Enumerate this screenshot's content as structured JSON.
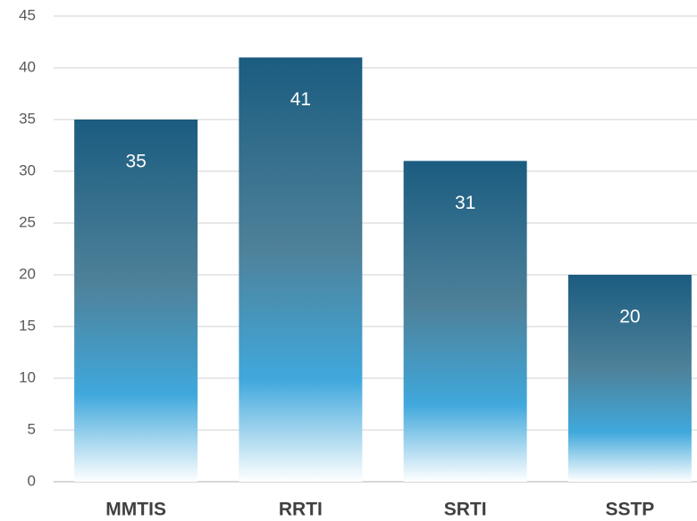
{
  "chart_data": {
    "type": "bar",
    "categories": [
      "MMTIS",
      "RRTI",
      "SRTI",
      "SSTP"
    ],
    "values": [
      35,
      41,
      31,
      20
    ],
    "color": "#1b5c80",
    "ylim": [
      0,
      45
    ],
    "yticks": [
      0,
      5,
      10,
      15,
      20,
      25,
      30,
      35,
      40,
      45
    ],
    "grid": true,
    "data_labels": true
  }
}
